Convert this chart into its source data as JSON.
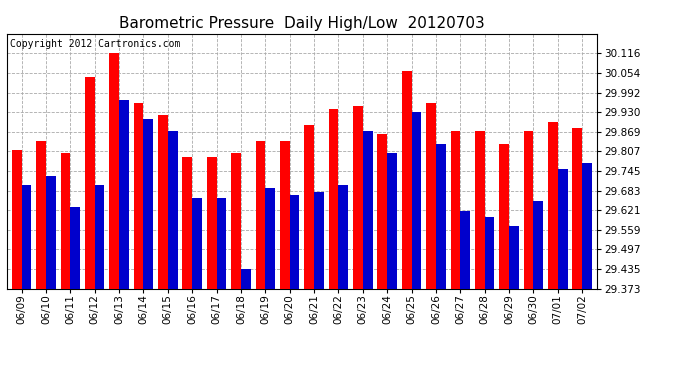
{
  "title": "Barometric Pressure  Daily High/Low  20120703",
  "copyright": "Copyright 2012 Cartronics.com",
  "dates": [
    "06/09",
    "06/10",
    "06/11",
    "06/12",
    "06/13",
    "06/14",
    "06/15",
    "06/16",
    "06/17",
    "06/18",
    "06/19",
    "06/20",
    "06/21",
    "06/22",
    "06/23",
    "06/24",
    "06/25",
    "06/26",
    "06/27",
    "06/28",
    "06/29",
    "06/30",
    "07/01",
    "07/02"
  ],
  "highs": [
    29.81,
    29.84,
    29.8,
    30.04,
    30.116,
    29.96,
    29.92,
    29.79,
    29.79,
    29.8,
    29.84,
    29.84,
    29.89,
    29.94,
    29.95,
    29.86,
    30.06,
    29.96,
    29.87,
    29.87,
    29.83,
    29.87,
    29.9,
    29.88
  ],
  "lows": [
    29.7,
    29.73,
    29.63,
    29.7,
    29.97,
    29.91,
    29.87,
    29.66,
    29.66,
    29.435,
    29.69,
    29.67,
    29.68,
    29.7,
    29.87,
    29.8,
    29.93,
    29.83,
    29.62,
    29.6,
    29.57,
    29.65,
    29.75,
    29.77
  ],
  "high_color": "#ff0000",
  "low_color": "#0000cc",
  "ylim_min": 29.373,
  "ylim_max": 30.178,
  "yticks": [
    29.373,
    29.435,
    29.497,
    29.559,
    29.621,
    29.683,
    29.745,
    29.807,
    29.869,
    29.93,
    29.992,
    30.054,
    30.116
  ],
  "background_color": "#ffffff",
  "plot_bg_color": "#ffffff",
  "title_fontsize": 11,
  "copyright_fontsize": 7,
  "bar_width": 0.4
}
